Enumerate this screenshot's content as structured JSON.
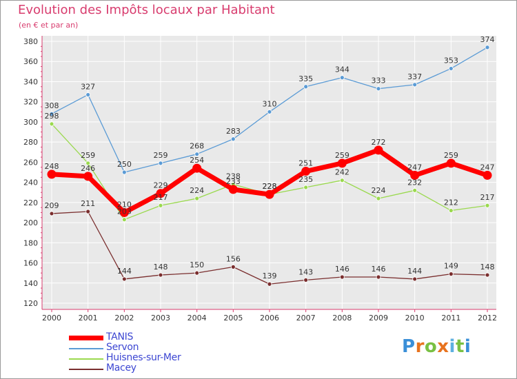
{
  "title": "Evolution des Impôts locaux par Habitant",
  "subtitle": "(en € et par an)",
  "logo_text": "Proxiti",
  "chart_data": {
    "type": "line",
    "title": "Evolution des Impôts locaux par Habitant",
    "subtitle": "(en € et par an)",
    "x": [
      "2000",
      "2001",
      "2002",
      "2003",
      "2004",
      "2005",
      "2006",
      "2007",
      "2008",
      "2009",
      "2010",
      "2011",
      "2012"
    ],
    "y_ticks": [
      "120",
      "140",
      "160",
      "180",
      "200",
      "220",
      "240",
      "260",
      "280",
      "300",
      "320",
      "340",
      "360",
      "380"
    ],
    "ylim": [
      120,
      380
    ],
    "grid": "horizontal",
    "legend_position": "bottom-left",
    "series": [
      {
        "name": "TANIS",
        "color": "#ff0000",
        "values": [
          248,
          246,
          210,
          229,
          254,
          233,
          228,
          251,
          259,
          272,
          247,
          259,
          247
        ]
      },
      {
        "name": "Servon",
        "color": "#5b9bd5",
        "values": [
          308,
          327,
          250,
          259,
          268,
          283,
          310,
          335,
          344,
          333,
          337,
          353,
          374
        ]
      },
      {
        "name": "Huisnes-sur-Mer",
        "color": "#9ad94e",
        "values": [
          298,
          259,
          203,
          217,
          224,
          238,
          228,
          235,
          242,
          224,
          232,
          212,
          217
        ]
      },
      {
        "name": "Macey",
        "color": "#7a2e2e",
        "values": [
          209,
          211,
          144,
          148,
          150,
          156,
          139,
          143,
          146,
          146,
          144,
          149,
          148
        ]
      }
    ]
  }
}
